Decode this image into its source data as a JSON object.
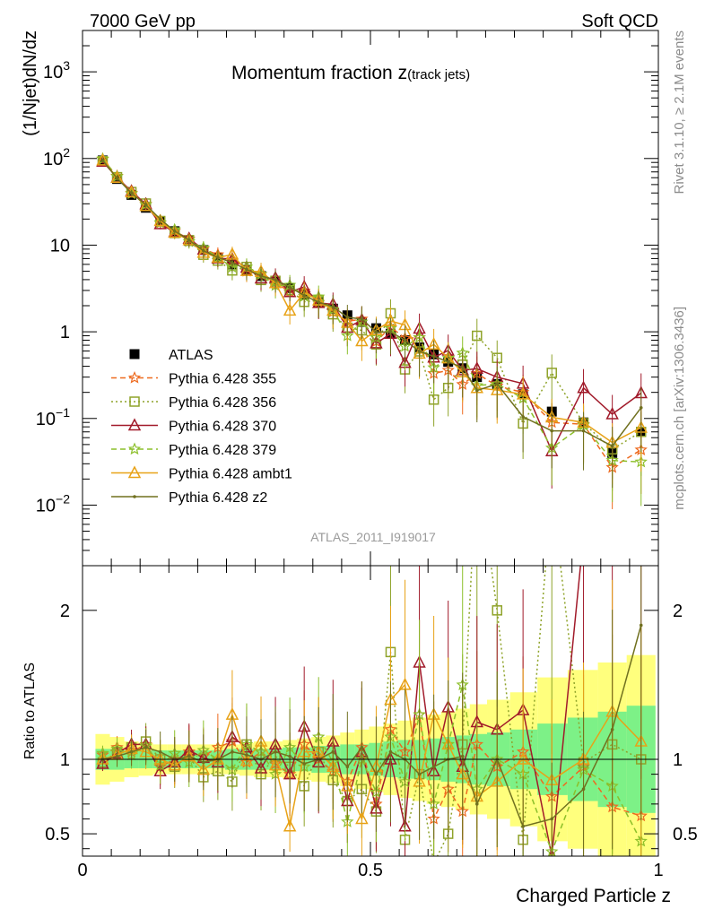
{
  "header": {
    "left": "7000 GeV pp",
    "right": "Soft QCD",
    "side_top": "Rivet 3.1.10, ≥ 2.1M events",
    "side_bottom": "mcplots.cern.ch [arXiv:1306.3436]"
  },
  "chart_data": {
    "type": "line",
    "title": "Momentum fraction",
    "title_var": "z",
    "title_sub": "(track jets)",
    "analysis": "ATLAS_2011_I919017",
    "xlabel": "Charged Particle z",
    "ylabel": "(1/Njet)dN/dz",
    "ratio_ylabel": "Ratio to ATLAS",
    "xlim": [
      0,
      1
    ],
    "ylim_log": [
      0.002,
      3000
    ],
    "ratio_ylim": [
      0.35,
      2.3
    ],
    "x_ticks": [
      "0",
      "0.5",
      "1"
    ],
    "y_ticks_main": [
      {
        "value": 1000,
        "base": "10",
        "exp": "3"
      },
      {
        "value": 100,
        "base": "10",
        "exp": "2"
      },
      {
        "value": 10,
        "base": "10",
        "exp": ""
      },
      {
        "value": 1,
        "base": "1",
        "exp": ""
      },
      {
        "value": 0.1,
        "base": "10",
        "exp": "−1"
      },
      {
        "value": 0.01,
        "base": "10",
        "exp": "−2"
      }
    ],
    "y_ticks_ratio": [
      "0.5",
      "1",
      "2"
    ],
    "legend_position": "bottom-left",
    "x": [
      0.035,
      0.06,
      0.085,
      0.11,
      0.135,
      0.16,
      0.185,
      0.21,
      0.235,
      0.26,
      0.285,
      0.31,
      0.335,
      0.36,
      0.385,
      0.41,
      0.435,
      0.46,
      0.485,
      0.51,
      0.535,
      0.56,
      0.585,
      0.61,
      0.635,
      0.66,
      0.685,
      0.72,
      0.765,
      0.815,
      0.87,
      0.92,
      0.97
    ],
    "band_inner": [
      0.07,
      0.07,
      0.06,
      0.06,
      0.06,
      0.06,
      0.06,
      0.06,
      0.06,
      0.07,
      0.07,
      0.07,
      0.07,
      0.08,
      0.08,
      0.09,
      0.09,
      0.1,
      0.1,
      0.11,
      0.12,
      0.13,
      0.13,
      0.14,
      0.15,
      0.16,
      0.17,
      0.18,
      0.2,
      0.24,
      0.28,
      0.32,
      0.36
    ],
    "band_outer": [
      0.17,
      0.15,
      0.12,
      0.11,
      0.1,
      0.1,
      0.1,
      0.1,
      0.1,
      0.1,
      0.11,
      0.12,
      0.12,
      0.13,
      0.14,
      0.15,
      0.16,
      0.18,
      0.2,
      0.22,
      0.24,
      0.26,
      0.28,
      0.3,
      0.32,
      0.34,
      0.37,
      0.4,
      0.45,
      0.55,
      0.6,
      0.65,
      0.7
    ],
    "series": [
      {
        "name": "ATLAS",
        "color": "#000000",
        "marker": "square-filled",
        "line": "none",
        "values": [
          95,
          58,
          38,
          27,
          19,
          14.5,
          11.2,
          8.8,
          7.2,
          6,
          5.1,
          4.4,
          3.8,
          3.2,
          2.7,
          2.2,
          1.85,
          1.55,
          1.3,
          1.1,
          0.95,
          0.8,
          0.66,
          0.55,
          0.45,
          0.38,
          0.3,
          0.25,
          0.19,
          0.12,
          0.09,
          0.04,
          0.07
        ],
        "errors": [
          5,
          3,
          2,
          1.5,
          1,
          0.8,
          0.6,
          0.5,
          0.4,
          0.35,
          0.3,
          0.25,
          0.22,
          0.2,
          0.17,
          0.15,
          0.13,
          0.12,
          0.1,
          0.1,
          0.09,
          0.08,
          0.07,
          0.06,
          0.06,
          0.05,
          0.05,
          0.045,
          0.04,
          0.03,
          0.025,
          0.02,
          0.03
        ]
      },
      {
        "name": "Pythia 6.428 355",
        "color": "#ee6a1f",
        "marker": "star",
        "line": "dashed",
        "ratio": [
          1.03,
          1.08,
          1.05,
          1.1,
          0.95,
          1,
          1.05,
          1.02,
          1.08,
          1.12,
          0.98,
          1.05,
          0.97,
          0.9,
          1.1,
          1,
          0.92,
          0.85,
          1.08,
          0.7,
          1.2,
          1.05,
          1.3,
          0.6,
          0.8,
          0.65,
          1.1,
          0.95,
          1.05,
          0.75,
          0.95,
          0.68,
          0.62
        ]
      },
      {
        "name": "Pythia 6.428 356",
        "color": "#8fa32a",
        "marker": "square-open",
        "line": "dotted",
        "ratio": [
          0.98,
          1.05,
          1.08,
          1.12,
          1,
          0.95,
          1.02,
          0.88,
          0.92,
          0.85,
          1.1,
          0.9,
          1.02,
          0.95,
          0.82,
          1.05,
          0.86,
          0.72,
          0.8,
          0.65,
          1.72,
          0.46,
          0.9,
          0.3,
          0.5,
          1.1,
          3.0,
          2.0,
          0.46,
          2.8,
          0.98,
          1.1,
          1.0
        ]
      },
      {
        "name": "Pythia 6.428 370",
        "color": "#a11a2a",
        "marker": "triangle-open",
        "line": "solid",
        "ratio": [
          0.97,
          1.04,
          1.1,
          1.1,
          0.92,
          0.98,
          1.06,
          1.01,
          0.98,
          1.15,
          1.08,
          0.94,
          1.1,
          0.9,
          1.22,
          0.98,
          1.12,
          0.72,
          1.05,
          0.67,
          1.0,
          0.55,
          1.65,
          0.92,
          1.35,
          0.95,
          1.25,
          1.2,
          1.33,
          0.35,
          2.5,
          2.8,
          2.8
        ]
      },
      {
        "name": "Pythia 6.428 379",
        "color": "#8cbf2a",
        "marker": "star",
        "line": "dashed",
        "ratio": [
          1.04,
          1.07,
          1.03,
          1.09,
          0.96,
          1.04,
          0.98,
          1.06,
          1.0,
          0.93,
          1.1,
          1.05,
          0.9,
          1.08,
          0.95,
          1.15,
          0.98,
          0.58,
          1.0,
          0.78,
          1.15,
          0.85,
          1.3,
          0.7,
          1.1,
          1.5,
          0.8,
          1.0,
          0.9,
          0.38,
          0.93,
          0.82,
          0.45
        ]
      },
      {
        "name": "Pythia 6.428 ambt1",
        "color": "#e8a217",
        "marker": "triangle-open",
        "line": "solid",
        "ratio": [
          1.0,
          1.03,
          1.07,
          1.05,
          1.0,
          0.96,
          1.02,
          0.93,
          1.0,
          1.3,
          0.99,
          1.12,
          0.96,
          0.55,
          1.05,
          1.05,
          0.95,
          0.82,
          0.6,
          0.95,
          1.4,
          1.5,
          0.85,
          1.3,
          1.1,
          0.9,
          0.75,
          0.85,
          1.0,
          0.86,
          1.0,
          1.32,
          1.12
        ]
      },
      {
        "name": "Pythia 6.428 z2",
        "color": "#70701f",
        "marker": "dot",
        "line": "solid",
        "ratio": [
          1.0,
          1.02,
          1.05,
          1.08,
          1.05,
          1.0,
          1.02,
          0.98,
          1.0,
          1.05,
          1.03,
          1.0,
          1.05,
          1.02,
          0.97,
          1.0,
          1.05,
          0.95,
          1.08,
          0.9,
          1.05,
          1.0,
          0.9,
          0.95,
          1.0,
          1.02,
          0.7,
          1.0,
          0.55,
          0.6,
          0.8,
          1.2,
          1.9
        ]
      }
    ]
  }
}
